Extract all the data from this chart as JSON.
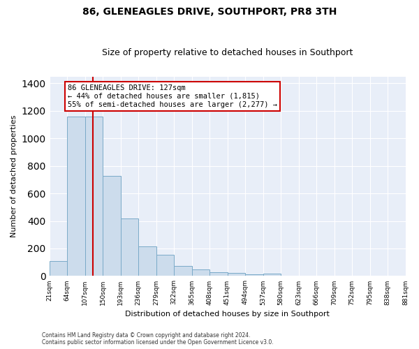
{
  "title": "86, GLENEAGLES DRIVE, SOUTHPORT, PR8 3TH",
  "subtitle": "Size of property relative to detached houses in Southport",
  "xlabel": "Distribution of detached houses by size in Southport",
  "ylabel": "Number of detached properties",
  "bar_color": "#ccdcec",
  "bar_edge_color": "#7aaac8",
  "marker_line_color": "#cc0000",
  "marker_value": 127,
  "annotation_text": "86 GLENEAGLES DRIVE: 127sqm\n← 44% of detached houses are smaller (1,815)\n55% of semi-detached houses are larger (2,277) →",
  "annotation_box_color": "#ffffff",
  "annotation_box_edge_color": "#cc0000",
  "footer_text": "Contains HM Land Registry data © Crown copyright and database right 2024.\nContains public sector information licensed under the Open Government Licence v3.0.",
  "bins": [
    21,
    64,
    107,
    150,
    193,
    236,
    279,
    322,
    365,
    408,
    451,
    494,
    537,
    580,
    623,
    666,
    709,
    752,
    795,
    838,
    881
  ],
  "bar_heights": [
    107,
    1160,
    1160,
    728,
    418,
    215,
    152,
    75,
    47,
    30,
    20,
    13,
    15,
    0,
    0,
    0,
    0,
    0,
    0,
    0
  ],
  "ylim": [
    0,
    1450
  ],
  "bg_color": "#e8eef8",
  "grid_color": "#ffffff",
  "title_fontsize": 10,
  "subtitle_fontsize": 9,
  "ylabel_fontsize": 8,
  "xlabel_fontsize": 8,
  "tick_fontsize": 6.5,
  "annotation_fontsize": 7.5,
  "footer_fontsize": 5.5
}
